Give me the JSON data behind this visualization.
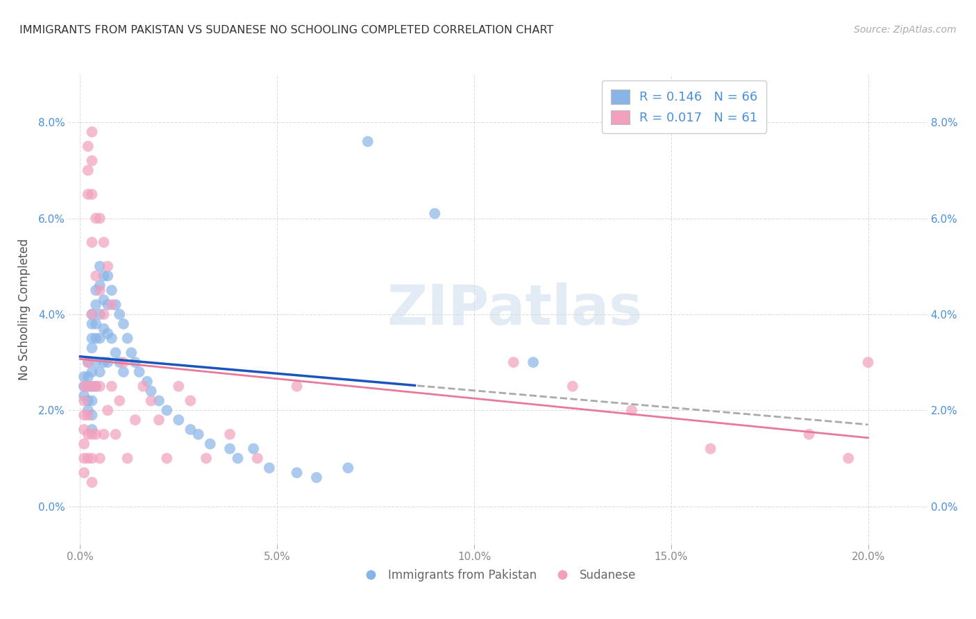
{
  "title": "IMMIGRANTS FROM PAKISTAN VS SUDANESE NO SCHOOLING COMPLETED CORRELATION CHART",
  "source": "Source: ZipAtlas.com",
  "xlabel_tick_vals": [
    0.0,
    0.05,
    0.1,
    0.15,
    0.2
  ],
  "ylabel_tick_vals": [
    0.0,
    0.02,
    0.04,
    0.06,
    0.08
  ],
  "xlim": [
    -0.003,
    0.215
  ],
  "ylim": [
    -0.008,
    0.09
  ],
  "ylabel": "No Schooling Completed",
  "pakistan_color": "#89b4e8",
  "sudanese_color": "#f2a0be",
  "pakistan_trend_color": "#1a55bb",
  "sudanese_trend_color": "#e8799a",
  "trend_dash_color": "#aaaaaa",
  "watermark": "ZIPatlas",
  "background_color": "#ffffff",
  "grid_color": "#dddddd",
  "legend_text_color": "#4a90d9",
  "axis_text_color": "#888888",
  "title_color": "#333333",
  "pakistan_x": [
    0.001,
    0.001,
    0.001,
    0.002,
    0.002,
    0.002,
    0.002,
    0.002,
    0.003,
    0.003,
    0.003,
    0.003,
    0.003,
    0.003,
    0.003,
    0.003,
    0.003,
    0.004,
    0.004,
    0.004,
    0.004,
    0.004,
    0.004,
    0.005,
    0.005,
    0.005,
    0.005,
    0.005,
    0.006,
    0.006,
    0.006,
    0.006,
    0.007,
    0.007,
    0.007,
    0.007,
    0.008,
    0.008,
    0.009,
    0.009,
    0.01,
    0.01,
    0.011,
    0.011,
    0.012,
    0.013,
    0.014,
    0.015,
    0.017,
    0.018,
    0.02,
    0.022,
    0.025,
    0.028,
    0.03,
    0.033,
    0.038,
    0.04,
    0.044,
    0.048,
    0.055,
    0.06,
    0.068,
    0.073,
    0.09,
    0.115
  ],
  "pakistan_y": [
    0.027,
    0.025,
    0.023,
    0.03,
    0.027,
    0.025,
    0.022,
    0.02,
    0.04,
    0.038,
    0.035,
    0.033,
    0.028,
    0.025,
    0.022,
    0.019,
    0.016,
    0.045,
    0.042,
    0.038,
    0.035,
    0.03,
    0.025,
    0.05,
    0.046,
    0.04,
    0.035,
    0.028,
    0.048,
    0.043,
    0.037,
    0.03,
    0.048,
    0.042,
    0.036,
    0.03,
    0.045,
    0.035,
    0.042,
    0.032,
    0.04,
    0.03,
    0.038,
    0.028,
    0.035,
    0.032,
    0.03,
    0.028,
    0.026,
    0.024,
    0.022,
    0.02,
    0.018,
    0.016,
    0.015,
    0.013,
    0.012,
    0.01,
    0.012,
    0.008,
    0.007,
    0.006,
    0.008,
    0.076,
    0.061,
    0.03
  ],
  "sudanese_x": [
    0.001,
    0.001,
    0.001,
    0.001,
    0.001,
    0.001,
    0.001,
    0.002,
    0.002,
    0.002,
    0.002,
    0.002,
    0.002,
    0.002,
    0.002,
    0.003,
    0.003,
    0.003,
    0.003,
    0.003,
    0.003,
    0.003,
    0.003,
    0.003,
    0.004,
    0.004,
    0.004,
    0.004,
    0.005,
    0.005,
    0.005,
    0.005,
    0.006,
    0.006,
    0.006,
    0.007,
    0.007,
    0.008,
    0.008,
    0.009,
    0.01,
    0.011,
    0.012,
    0.014,
    0.016,
    0.018,
    0.02,
    0.022,
    0.025,
    0.028,
    0.032,
    0.038,
    0.045,
    0.055,
    0.11,
    0.125,
    0.14,
    0.16,
    0.185,
    0.195,
    0.2
  ],
  "sudanese_y": [
    0.025,
    0.022,
    0.019,
    0.016,
    0.013,
    0.01,
    0.007,
    0.075,
    0.07,
    0.065,
    0.03,
    0.025,
    0.019,
    0.015,
    0.01,
    0.078,
    0.072,
    0.065,
    0.055,
    0.04,
    0.025,
    0.015,
    0.01,
    0.005,
    0.06,
    0.048,
    0.025,
    0.015,
    0.06,
    0.045,
    0.025,
    0.01,
    0.055,
    0.04,
    0.015,
    0.05,
    0.02,
    0.042,
    0.025,
    0.015,
    0.022,
    0.03,
    0.01,
    0.018,
    0.025,
    0.022,
    0.018,
    0.01,
    0.025,
    0.022,
    0.01,
    0.015,
    0.01,
    0.025,
    0.03,
    0.025,
    0.02,
    0.012,
    0.015,
    0.01,
    0.03
  ]
}
